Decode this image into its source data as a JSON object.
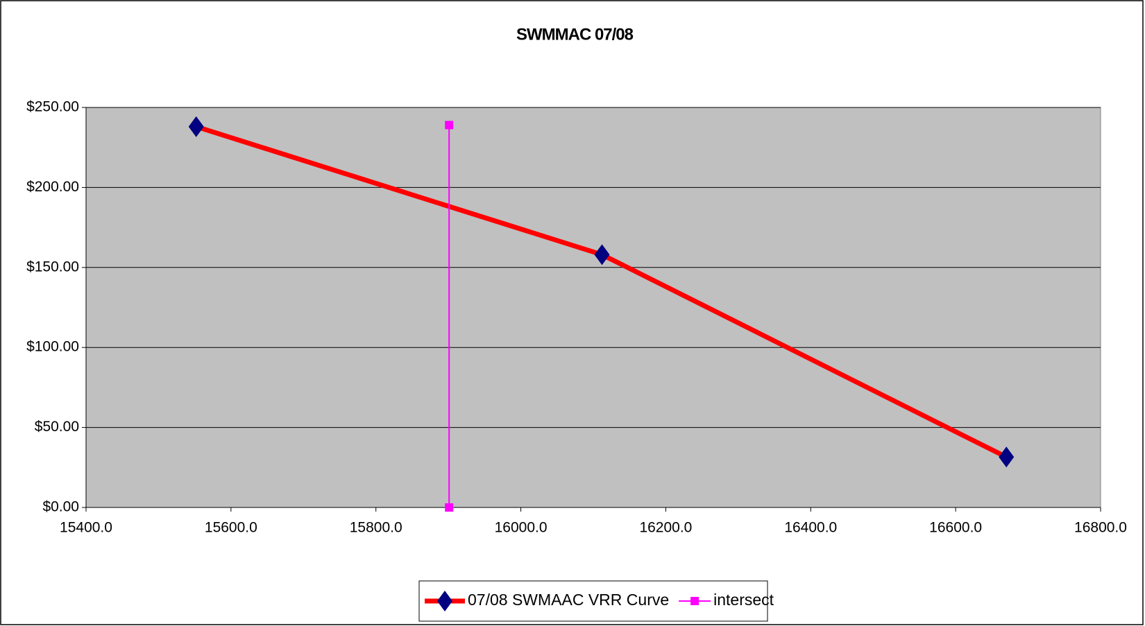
{
  "chart_data": {
    "type": "line",
    "title": "SWMMAC 07/08",
    "xlim": [
      15400,
      16800
    ],
    "xticks": [
      {
        "value": 15400,
        "label": "15400.0"
      },
      {
        "value": 15600,
        "label": "15600.0"
      },
      {
        "value": 15800,
        "label": "15800.0"
      },
      {
        "value": 16000,
        "label": "16000.0"
      },
      {
        "value": 16200,
        "label": "16200.0"
      },
      {
        "value": 16400,
        "label": "16400.0"
      },
      {
        "value": 16600,
        "label": "16600.0"
      },
      {
        "value": 16800,
        "label": "16800.0"
      }
    ],
    "ylim": [
      0,
      250
    ],
    "yticks": [
      {
        "value": 0,
        "label": "$0.00"
      },
      {
        "value": 50,
        "label": "$50.00"
      },
      {
        "value": 100,
        "label": "$100.00"
      },
      {
        "value": 150,
        "label": "$150.00"
      },
      {
        "value": 200,
        "label": "$200.00"
      },
      {
        "value": 250,
        "label": "$250.00"
      }
    ],
    "grid": true,
    "plot_background": "#c0c0c0",
    "legend": "bottom",
    "series": [
      {
        "name": "07/08 SWMAAC VRR Curve",
        "color": "#ff0000",
        "marker": "diamond",
        "marker_color": "#000080",
        "x": [
          15552,
          16112,
          16670
        ],
        "values": [
          238,
          158,
          31.5
        ]
      },
      {
        "name": "intersect",
        "color": "#ff00ff",
        "marker": "square",
        "marker_color": "#ff00ff",
        "x": [
          15901,
          15901
        ],
        "values": [
          239,
          0
        ]
      }
    ]
  }
}
